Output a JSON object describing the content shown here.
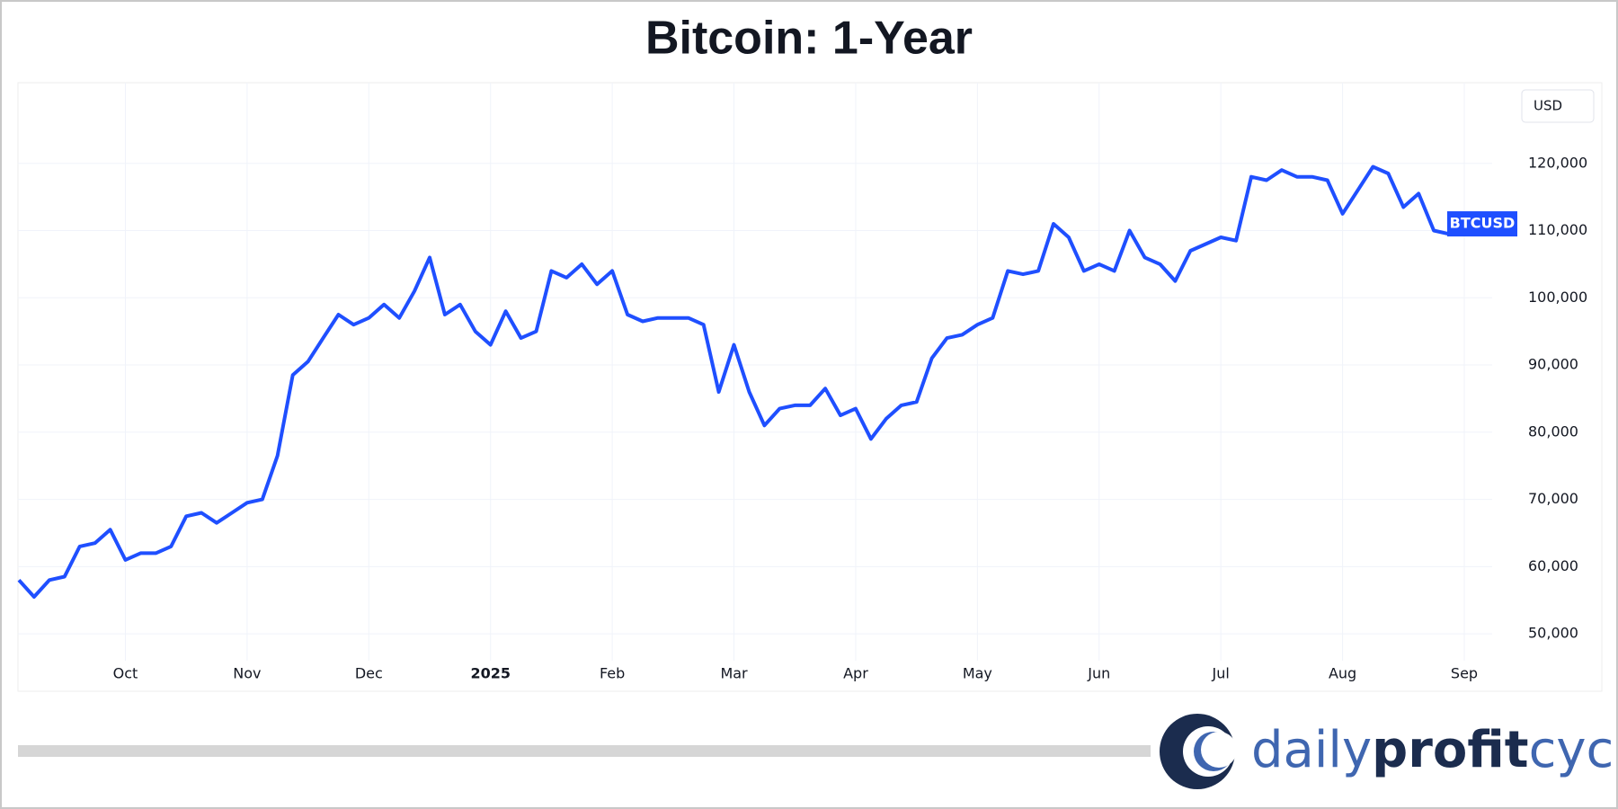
{
  "chart_data": {
    "type": "line",
    "title": "Bitcoin: 1-Year",
    "currency": "USD",
    "categories": [
      null,
      null,
      null,
      null,
      null,
      null,
      null,
      "Oct",
      null,
      null,
      null,
      null,
      null,
      null,
      null,
      "Nov",
      null,
      null,
      null,
      null,
      null,
      null,
      null,
      "Dec",
      null,
      null,
      null,
      null,
      null,
      null,
      null,
      "2025",
      null,
      null,
      null,
      null,
      null,
      null,
      null,
      "Feb",
      null,
      null,
      null,
      null,
      null,
      null,
      null,
      "Mar",
      null,
      null,
      null,
      null,
      null,
      null,
      null,
      "Apr",
      null,
      null,
      null,
      null,
      null,
      null,
      null,
      "May",
      null,
      null,
      null,
      null,
      null,
      null,
      null,
      "Jun",
      null,
      null,
      null,
      null,
      null,
      null,
      null,
      "Jul",
      null,
      null,
      null,
      null,
      null,
      null,
      null,
      "Aug",
      null,
      null,
      null,
      null,
      null,
      null,
      null,
      "Sep"
    ],
    "series": [
      {
        "name": "BTCUSD",
        "color": "#1f4fff",
        "values": [
          58000,
          55500,
          58000,
          58500,
          63000,
          63500,
          65500,
          61000,
          62000,
          62000,
          63000,
          67500,
          68000,
          66500,
          68000,
          69500,
          70000,
          76500,
          88500,
          90500,
          94000,
          97500,
          96000,
          97000,
          99000,
          97000,
          101000,
          106000,
          97500,
          99000,
          95000,
          93000,
          98000,
          94000,
          95000,
          104000,
          103000,
          105000,
          102000,
          104000,
          97500,
          96500,
          97000,
          97000,
          97000,
          96000,
          86000,
          93000,
          86000,
          81000,
          83500,
          84000,
          84000,
          86500,
          82500,
          83500,
          79000,
          82000,
          84000,
          84500,
          91000,
          94000,
          94500,
          96000,
          97000,
          104000,
          103500,
          104000,
          111000,
          109000,
          104000,
          105000,
          104000,
          110000,
          106000,
          105000,
          102500,
          107000,
          108000,
          109000,
          108500,
          118000,
          117500,
          119000,
          118000,
          118000,
          117500,
          112500,
          116000,
          119500,
          118500,
          113500,
          115500,
          110000,
          109500,
          111000
        ]
      }
    ],
    "ylim": [
      46000,
      130000
    ],
    "yticks": [
      {
        "value": 50000,
        "label": "50,000"
      },
      {
        "value": 60000,
        "label": "60,000"
      },
      {
        "value": 70000,
        "label": "70,000"
      },
      {
        "value": 80000,
        "label": "80,000"
      },
      {
        "value": 90000,
        "label": "90,000"
      },
      {
        "value": 100000,
        "label": "100,000"
      },
      {
        "value": 110000,
        "label": "110,000"
      },
      {
        "value": 120000,
        "label": "120,000"
      }
    ],
    "grid": true
  },
  "logo": {
    "parts": [
      "daily",
      "profit",
      "cycle"
    ]
  }
}
